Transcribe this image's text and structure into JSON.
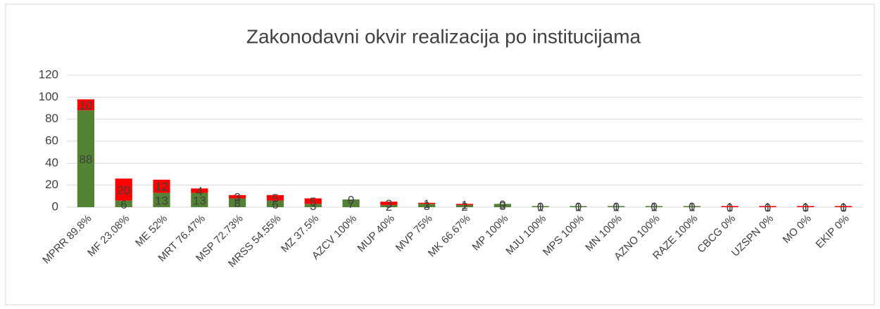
{
  "chart_data": {
    "type": "stacked_bar",
    "title": "Zakonodavni okvir realizacija po institucijama",
    "categories": [
      "MPRR 89.8%",
      "MF 23.08%",
      "ME 52%",
      "MRT 76.47%",
      "MSP 72.73%",
      "MRSS 54.55%",
      "MZ 37.5%",
      "AZCV 100%",
      "MUP 40%",
      "MVP 75%",
      "MK 66.67%",
      "MP 100%",
      "MJU 100%",
      "MPS 100%",
      "MN 100%",
      "AZNO 100%",
      "RAZE 100%",
      "CBCG 0%",
      "UZSPN 0%",
      "MO 0%",
      "EKIP 0%"
    ],
    "series": [
      {
        "color": "#548235",
        "values": [
          88,
          6,
          13,
          13,
          8,
          6,
          3,
          7,
          2,
          3,
          2,
          3,
          1,
          1,
          1,
          1,
          1,
          0,
          0,
          0,
          0
        ]
      },
      {
        "color": "#ff0000",
        "values": [
          10,
          20,
          12,
          4,
          3,
          5,
          5,
          0,
          3,
          1,
          1,
          0,
          0,
          0,
          0,
          0,
          0,
          1,
          1,
          1,
          1
        ]
      }
    ],
    "ylim": [
      0,
      120
    ],
    "yticks": [
      0,
      20,
      40,
      60,
      80,
      100,
      120
    ],
    "grid": true
  }
}
